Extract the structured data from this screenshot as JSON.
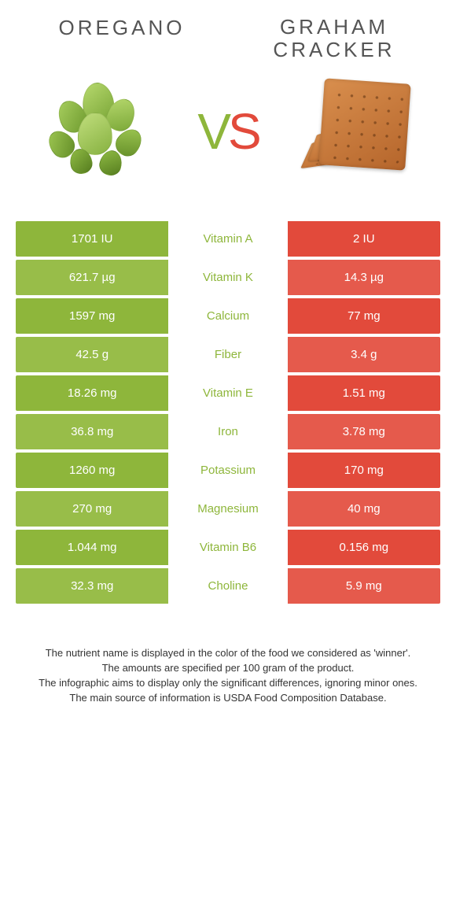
{
  "colors": {
    "left": "#8eb63b",
    "right": "#e24a3b",
    "left_alt": "#98bd49",
    "right_alt": "#e55a4c",
    "oregano_leaf_light": "#a8cf5f",
    "oregano_leaf_dark": "#6e9a2e",
    "cracker_light": "#d98f4e",
    "cracker_dark": "#b5652b"
  },
  "left_food": {
    "title": "Oregano"
  },
  "right_food": {
    "title": "Graham cracker"
  },
  "vs": {
    "v": "V",
    "s": "S"
  },
  "rows": [
    {
      "label": "Vitamin A",
      "left": "1701 IU",
      "right": "2 IU",
      "winner": "left"
    },
    {
      "label": "Vitamin K",
      "left": "621.7 µg",
      "right": "14.3 µg",
      "winner": "left"
    },
    {
      "label": "Calcium",
      "left": "1597 mg",
      "right": "77 mg",
      "winner": "left"
    },
    {
      "label": "Fiber",
      "left": "42.5 g",
      "right": "3.4 g",
      "winner": "left"
    },
    {
      "label": "Vitamin E",
      "left": "18.26 mg",
      "right": "1.51 mg",
      "winner": "left"
    },
    {
      "label": "Iron",
      "left": "36.8 mg",
      "right": "3.78 mg",
      "winner": "left"
    },
    {
      "label": "Potassium",
      "left": "1260 mg",
      "right": "170 mg",
      "winner": "left"
    },
    {
      "label": "Magnesium",
      "left": "270 mg",
      "right": "40 mg",
      "winner": "left"
    },
    {
      "label": "Vitamin B6",
      "left": "1.044 mg",
      "right": "0.156 mg",
      "winner": "left"
    },
    {
      "label": "Choline",
      "left": "32.3 mg",
      "right": "5.9 mg",
      "winner": "left"
    }
  ],
  "footer": {
    "l1": "The nutrient name is displayed in the color of the food we considered as 'winner'.",
    "l2": "The amounts are specified per 100 gram of the product.",
    "l3": "The infographic aims to display only the significant differences, ignoring minor ones.",
    "l4": "The main source of information is USDA Food Composition Database."
  }
}
